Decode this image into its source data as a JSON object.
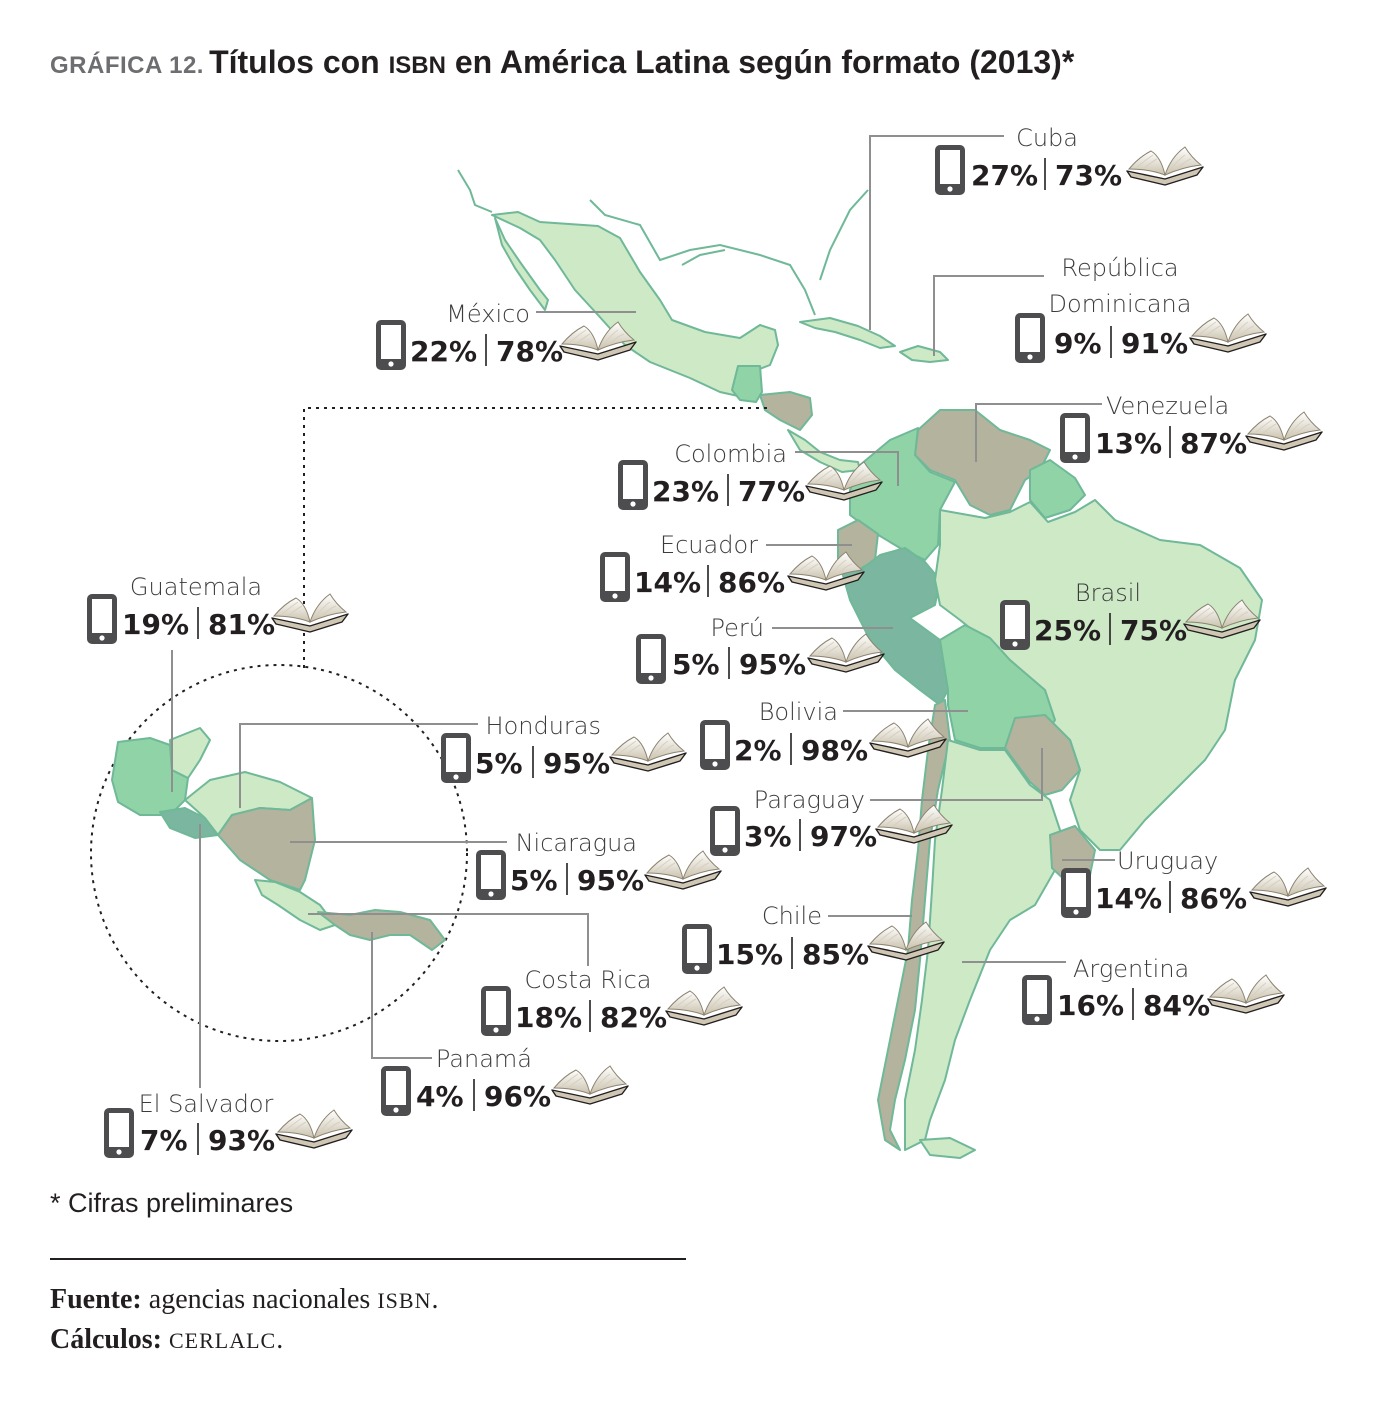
{
  "header": {
    "label": "GRÁFICA 12.",
    "title_pre": "Títulos con",
    "title_isbn": "ISBN",
    "title_post": "en América Latina según formato (2013)*"
  },
  "colors": {
    "land_light": "#cde9c6",
    "land_mid": "#8fd3a6",
    "land_teal": "#7bb6a0",
    "land_tan": "#b4b39e",
    "phone": "#4d4d4f",
    "leader": "#8f8f8f"
  },
  "icons": {
    "digital": "phone-icon",
    "print": "open-book-icon"
  },
  "countries": [
    {
      "id": "cuba",
      "name": "Cuba",
      "digital": "27%",
      "print": "73%"
    },
    {
      "id": "dominicana",
      "name_1": "República",
      "name_2": "Dominicana",
      "digital": "9%",
      "print": "91%"
    },
    {
      "id": "mexico",
      "name": "México",
      "digital": "22%",
      "print": "78%"
    },
    {
      "id": "venezuela",
      "name": "Venezuela",
      "digital": "13%",
      "print": "87%"
    },
    {
      "id": "colombia",
      "name": "Colombia",
      "digital": "23%",
      "print": "77%"
    },
    {
      "id": "ecuador",
      "name": "Ecuador",
      "digital": "14%",
      "print": "86%"
    },
    {
      "id": "brasil",
      "name": "Brasil",
      "digital": "25%",
      "print": "75%"
    },
    {
      "id": "guatemala",
      "name": "Guatemala",
      "digital": "19%",
      "print": "81%"
    },
    {
      "id": "peru",
      "name": "Perú",
      "digital": "5%",
      "print": "95%"
    },
    {
      "id": "bolivia",
      "name": "Bolivia",
      "digital": "2%",
      "print": "98%"
    },
    {
      "id": "honduras",
      "name": "Honduras",
      "digital": "5%",
      "print": "95%"
    },
    {
      "id": "paraguay",
      "name": "Paraguay",
      "digital": "3%",
      "print": "97%"
    },
    {
      "id": "nicaragua",
      "name": "Nicaragua",
      "digital": "5%",
      "print": "95%"
    },
    {
      "id": "uruguay",
      "name": "Uruguay",
      "digital": "14%",
      "print": "86%"
    },
    {
      "id": "chile",
      "name": "Chile",
      "digital": "15%",
      "print": "85%"
    },
    {
      "id": "costarica",
      "name": "Costa Rica",
      "digital": "18%",
      "print": "82%"
    },
    {
      "id": "argentina",
      "name": "Argentina",
      "digital": "16%",
      "print": "84%"
    },
    {
      "id": "panama",
      "name": "Panamá",
      "digital": "4%",
      "print": "96%"
    },
    {
      "id": "elsalvador",
      "name": "El Salvador",
      "digital": "7%",
      "print": "93%"
    }
  ],
  "note": "* Cifras preliminares",
  "source": {
    "fuente_label": "Fuente:",
    "fuente_text": "agencias nacionales",
    "fuente_isbn": "ISBN",
    "fuente_end": ".",
    "calculos_label": "Cálculos:",
    "calculos_text": "CERLALC",
    "calculos_end": "."
  }
}
